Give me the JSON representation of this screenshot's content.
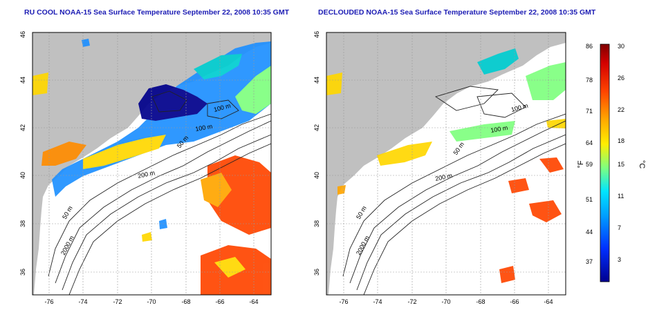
{
  "titles": {
    "left": "RU COOL NOAA-15 Sea Surface Temperature September 22, 2008 10:35 GMT",
    "right": "DECLOUDED NOAA-15 Sea Surface Temperature September 22, 2008 10:35 GMT"
  },
  "axes": {
    "x_ticks": [
      "-76",
      "-74",
      "-72",
      "-70",
      "-68",
      "-66",
      "-64"
    ],
    "y_ticks": [
      "36",
      "38",
      "40",
      "42",
      "44",
      "46"
    ]
  },
  "contours": {
    "c50": "50 m",
    "c100": "100 m",
    "c200": "200 m",
    "c2000": "2000 m"
  },
  "colorbar": {
    "f_label": "°F",
    "c_label": "°C",
    "f_ticks": [
      "86",
      "78",
      "71",
      "64",
      "59",
      "51",
      "44",
      "37"
    ],
    "c_ticks": [
      "30",
      "26",
      "22",
      "18",
      "15",
      "11",
      "7",
      "3"
    ]
  },
  "colors": {
    "land": "#c0c0c0",
    "cold": "#00008b",
    "cool": "#1e90ff",
    "mild": "#00ced1",
    "warm": "#ffd700",
    "hot": "#ff4500",
    "hottest": "#8b0000",
    "title": "#1c1cb4"
  }
}
